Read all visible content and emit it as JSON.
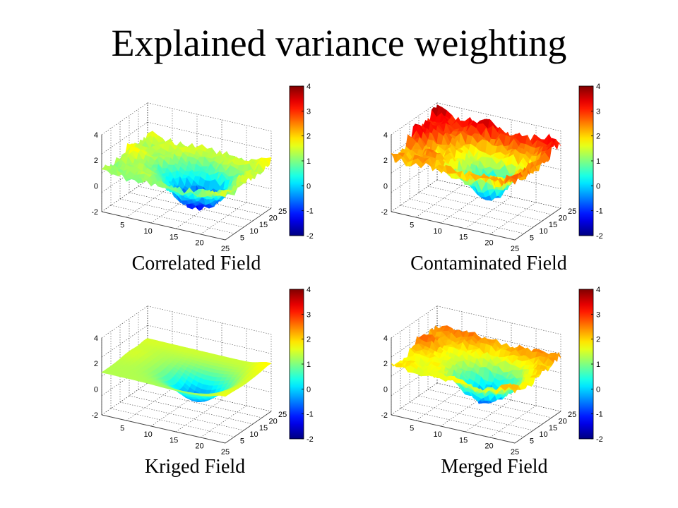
{
  "slide": {
    "title": "Explained variance weighting"
  },
  "colormap": {
    "name": "jet",
    "range": [
      -2,
      4
    ],
    "ticks": [
      "4",
      "3",
      "2",
      "1",
      "0",
      "-1",
      "-2"
    ]
  },
  "chart_data": [
    {
      "type": "surface",
      "title": "Correlated Field",
      "x_ticks": [
        "5",
        "10",
        "15",
        "20",
        "25"
      ],
      "y_ticks": [
        "5",
        "10",
        "15",
        "20",
        "25"
      ],
      "z_ticks": [
        "4",
        "2",
        "0",
        "-2"
      ],
      "xlim": [
        1,
        25
      ],
      "ylim": [
        1,
        25
      ],
      "zlim": [
        -2,
        4
      ],
      "clim": [
        -2,
        4
      ],
      "grid": true,
      "colorbar": true,
      "noise": 0.35,
      "base_level": 1.2,
      "trough_depth": 2.6,
      "edge_lift": 0.3
    },
    {
      "type": "surface",
      "title": "Contaminated Field",
      "x_ticks": [
        "5",
        "10",
        "15",
        "20",
        "25"
      ],
      "y_ticks": [
        "5",
        "10",
        "15",
        "20",
        "25"
      ],
      "z_ticks": [
        "4",
        "2",
        "0",
        "-2"
      ],
      "xlim": [
        1,
        25
      ],
      "ylim": [
        1,
        25
      ],
      "zlim": [
        -2,
        4
      ],
      "clim": [
        -2,
        4
      ],
      "grid": true,
      "colorbar": true,
      "noise": 0.45,
      "base_level": 2.2,
      "trough_depth": 2.6,
      "edge_lift": 1.2
    },
    {
      "type": "surface",
      "title": "Kriged Field",
      "x_ticks": [
        "5",
        "10",
        "15",
        "20",
        "25"
      ],
      "y_ticks": [
        "5",
        "10",
        "15",
        "20",
        "25"
      ],
      "z_ticks": [
        "4",
        "2",
        "0",
        "-2"
      ],
      "xlim": [
        1,
        25
      ],
      "ylim": [
        1,
        25
      ],
      "zlim": [
        -2,
        4
      ],
      "clim": [
        -2,
        4
      ],
      "grid": true,
      "colorbar": true,
      "noise": 0.0,
      "base_level": 1.3,
      "trough_depth": 1.9,
      "edge_lift": 0.2
    },
    {
      "type": "surface",
      "title": "Merged Field",
      "x_ticks": [
        "5",
        "10",
        "15",
        "20",
        "25"
      ],
      "y_ticks": [
        "5",
        "10",
        "15",
        "20",
        "25"
      ],
      "z_ticks": [
        "4",
        "2",
        "0",
        "-2"
      ],
      "xlim": [
        1,
        25
      ],
      "ylim": [
        1,
        25
      ],
      "zlim": [
        -2,
        4
      ],
      "clim": [
        -2,
        4
      ],
      "grid": true,
      "colorbar": true,
      "noise": 0.3,
      "base_level": 1.7,
      "trough_depth": 2.4,
      "edge_lift": 0.8
    }
  ]
}
